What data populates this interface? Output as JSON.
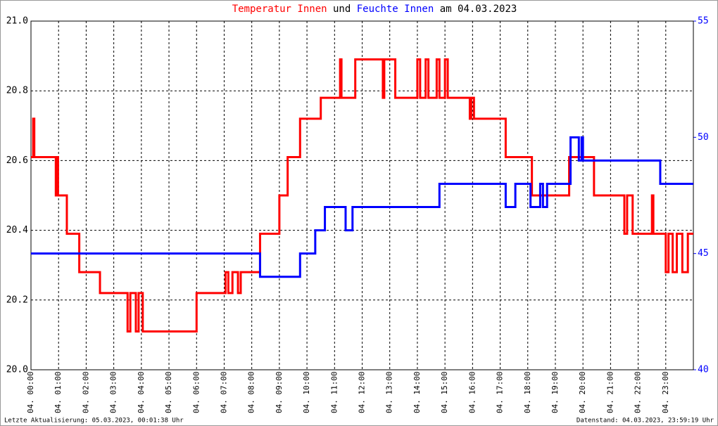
{
  "chart_data": {
    "type": "line",
    "title_joiner": "und",
    "title_suffix": "am 04.03.2023",
    "footer_left": "Letzte Aktualisierung: 05.03.2023, 00:01:38 Uhr",
    "footer_right": "Datenstand: 04.03.2023, 23:59:19 Uhr",
    "grid": true,
    "xlim": [
      0,
      24
    ],
    "xticks": [
      {
        "value": 0,
        "label": "04. 00:00"
      },
      {
        "value": 1,
        "label": "04. 01:00"
      },
      {
        "value": 2,
        "label": "04. 02:00"
      },
      {
        "value": 3,
        "label": "04. 03:00"
      },
      {
        "value": 4,
        "label": "04. 04:00"
      },
      {
        "value": 5,
        "label": "04. 05:00"
      },
      {
        "value": 6,
        "label": "04. 06:00"
      },
      {
        "value": 7,
        "label": "04. 07:00"
      },
      {
        "value": 8,
        "label": "04. 08:00"
      },
      {
        "value": 9,
        "label": "04. 09:00"
      },
      {
        "value": 10,
        "label": "04. 10:00"
      },
      {
        "value": 11,
        "label": "04. 11:00"
      },
      {
        "value": 12,
        "label": "04. 12:00"
      },
      {
        "value": 13,
        "label": "04. 13:00"
      },
      {
        "value": 14,
        "label": "04. 14:00"
      },
      {
        "value": 15,
        "label": "04. 15:00"
      },
      {
        "value": 16,
        "label": "04. 16:00"
      },
      {
        "value": 17,
        "label": "04. 17:00"
      },
      {
        "value": 18,
        "label": "04. 18:00"
      },
      {
        "value": 19,
        "label": "04. 19:00"
      },
      {
        "value": 20,
        "label": "04. 20:00"
      },
      {
        "value": 21,
        "label": "04. 21:00"
      },
      {
        "value": 22,
        "label": "04. 22:00"
      },
      {
        "value": 23,
        "label": "04. 23:00"
      }
    ],
    "ylim": [
      20,
      21
    ],
    "yticks": [
      {
        "value": 20,
        "label": "20.0"
      },
      20.2,
      20.4,
      20.6,
      20.8,
      {
        "value": 21,
        "label": "21.0"
      }
    ],
    "y2lim": [
      40,
      55
    ],
    "y2ticks": [
      40,
      45,
      50,
      55
    ],
    "series": [
      {
        "name": "Temperatur Innen",
        "color": "#ff0000",
        "x": [
          0,
          0.08,
          0.08,
          0.12,
          0.12,
          0.9,
          0.9,
          0.95,
          0.95,
          0.98,
          0.98,
          1.3,
          1.3,
          1.75,
          1.75,
          2.5,
          2.5,
          3.5,
          3.5,
          3.6,
          3.6,
          3.8,
          3.8,
          3.9,
          3.9,
          4.05,
          4.05,
          6.0,
          6.0,
          7.05,
          7.05,
          7.15,
          7.15,
          7.3,
          7.3,
          7.5,
          7.5,
          7.6,
          7.6,
          8.3,
          8.3,
          9.0,
          9.0,
          9.3,
          9.3,
          9.75,
          9.75,
          10.5,
          10.5,
          11.2,
          11.2,
          11.25,
          11.25,
          11.75,
          11.75,
          12.75,
          12.75,
          12.8,
          12.8,
          13.2,
          13.2,
          14.0,
          14.0,
          14.1,
          14.1,
          14.3,
          14.3,
          14.4,
          14.4,
          14.7,
          14.7,
          14.8,
          14.8,
          15.0,
          15.0,
          15.1,
          15.1,
          15.9,
          15.9,
          15.95,
          15.95,
          16.05,
          16.05,
          17.2,
          17.2,
          18.15,
          18.15,
          19.5,
          19.5,
          20.4,
          20.4,
          21.5,
          21.5,
          21.6,
          21.6,
          21.8,
          21.8,
          22.5,
          22.5,
          22.55,
          22.55,
          23.0,
          23.0,
          23.1,
          23.1,
          23.25,
          23.25,
          23.4,
          23.4,
          23.6,
          23.6,
          23.8,
          23.8,
          24
        ],
        "values": [
          20.61,
          20.61,
          20.72,
          20.72,
          20.61,
          20.61,
          20.5,
          20.5,
          20.61,
          20.61,
          20.5,
          20.5,
          20.39,
          20.39,
          20.28,
          20.28,
          20.22,
          20.22,
          20.11,
          20.11,
          20.22,
          20.22,
          20.11,
          20.11,
          20.22,
          20.22,
          20.11,
          20.11,
          20.22,
          20.22,
          20.28,
          20.28,
          20.22,
          20.22,
          20.28,
          20.28,
          20.22,
          20.22,
          20.28,
          20.28,
          20.39,
          20.39,
          20.5,
          20.5,
          20.61,
          20.61,
          20.72,
          20.72,
          20.78,
          20.78,
          20.89,
          20.89,
          20.78,
          20.78,
          20.89,
          20.89,
          20.78,
          20.78,
          20.89,
          20.89,
          20.78,
          20.78,
          20.89,
          20.89,
          20.78,
          20.78,
          20.89,
          20.89,
          20.78,
          20.78,
          20.89,
          20.89,
          20.78,
          20.78,
          20.89,
          20.89,
          20.78,
          20.78,
          20.72,
          20.72,
          20.78,
          20.78,
          20.72,
          20.72,
          20.61,
          20.61,
          20.5,
          20.5,
          20.61,
          20.61,
          20.5,
          20.5,
          20.39,
          20.39,
          20.5,
          20.5,
          20.39,
          20.39,
          20.5,
          20.5,
          20.39,
          20.39,
          20.28,
          20.28,
          20.39,
          20.39,
          20.28,
          20.28,
          20.39,
          20.39,
          20.28,
          20.28,
          20.39,
          20.39
        ]
      },
      {
        "name": "Feuchte Innen",
        "color": "#0000ff",
        "axis": "y2",
        "x": [
          0,
          8.3,
          8.3,
          9.75,
          9.75,
          10.3,
          10.3,
          10.65,
          10.65,
          11.4,
          11.4,
          11.65,
          11.65,
          14.8,
          14.8,
          17.2,
          17.2,
          17.55,
          17.55,
          18.1,
          18.1,
          18.45,
          18.45,
          18.55,
          18.55,
          18.7,
          18.7,
          19.55,
          19.55,
          19.85,
          19.85,
          19.95,
          19.95,
          20.0,
          20.0,
          22.8,
          22.8,
          24
        ],
        "values": [
          45,
          45,
          44,
          44,
          45,
          45,
          46,
          46,
          47,
          47,
          46,
          46,
          47,
          47,
          48,
          48,
          47,
          47,
          48,
          48,
          47,
          47,
          48,
          48,
          47,
          47,
          48,
          48,
          50,
          50,
          49,
          49,
          50,
          50,
          49,
          49,
          48,
          48
        ]
      }
    ]
  }
}
